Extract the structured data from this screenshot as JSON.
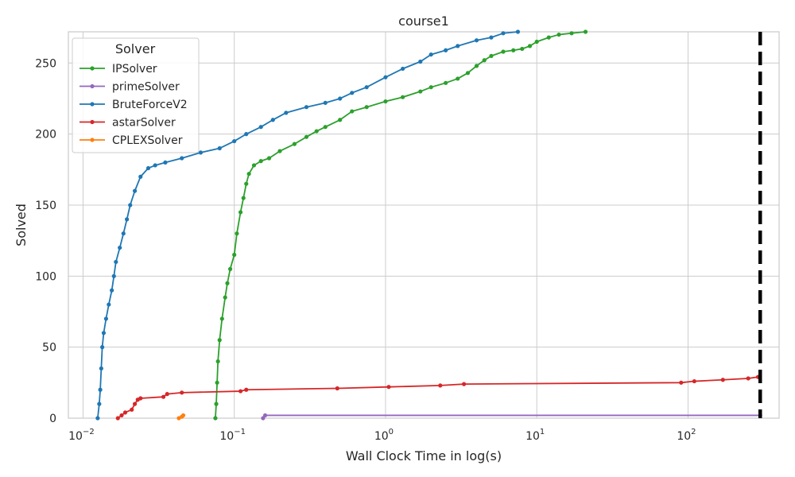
{
  "chart_data": {
    "type": "line",
    "title": "course1",
    "xlabel": "Wall Clock Time in log(s)",
    "ylabel": "Solved",
    "xscale": "log",
    "xlim": [
      0.008,
      400
    ],
    "ylim": [
      0,
      272
    ],
    "xticks": [
      {
        "value": 0.01,
        "base": "10",
        "exp": "−2"
      },
      {
        "value": 0.1,
        "base": "10",
        "exp": "−1"
      },
      {
        "value": 1,
        "base": "10",
        "exp": "0"
      },
      {
        "value": 10,
        "base": "10",
        "exp": "1"
      },
      {
        "value": 100,
        "base": "10",
        "exp": "2"
      }
    ],
    "yticks": [
      0,
      50,
      100,
      150,
      200,
      250
    ],
    "grid": true,
    "legend": {
      "title": "Solver",
      "position": "top-left"
    },
    "vline": {
      "x": 300,
      "style": "dashed",
      "color": "#000000"
    },
    "series": [
      {
        "name": "IPSolver",
        "color": "#2ca02c",
        "points": [
          [
            0.075,
            0
          ],
          [
            0.076,
            10
          ],
          [
            0.077,
            25
          ],
          [
            0.078,
            40
          ],
          [
            0.08,
            55
          ],
          [
            0.083,
            70
          ],
          [
            0.087,
            85
          ],
          [
            0.09,
            95
          ],
          [
            0.094,
            105
          ],
          [
            0.1,
            115
          ],
          [
            0.104,
            130
          ],
          [
            0.11,
            145
          ],
          [
            0.115,
            155
          ],
          [
            0.12,
            165
          ],
          [
            0.125,
            172
          ],
          [
            0.135,
            178
          ],
          [
            0.15,
            181
          ],
          [
            0.17,
            183
          ],
          [
            0.2,
            188
          ],
          [
            0.25,
            193
          ],
          [
            0.3,
            198
          ],
          [
            0.35,
            202
          ],
          [
            0.4,
            205
          ],
          [
            0.5,
            210
          ],
          [
            0.6,
            216
          ],
          [
            0.75,
            219
          ],
          [
            1.0,
            223
          ],
          [
            1.3,
            226
          ],
          [
            1.7,
            230
          ],
          [
            2.0,
            233
          ],
          [
            2.5,
            236
          ],
          [
            3.0,
            239
          ],
          [
            3.5,
            243
          ],
          [
            4.0,
            248
          ],
          [
            4.5,
            252
          ],
          [
            5.0,
            255
          ],
          [
            6.0,
            258
          ],
          [
            7.0,
            259
          ],
          [
            8.0,
            260
          ],
          [
            9.0,
            262
          ],
          [
            10.0,
            265
          ],
          [
            12.0,
            268
          ],
          [
            14.0,
            270
          ],
          [
            17.0,
            271
          ],
          [
            21.0,
            272
          ]
        ]
      },
      {
        "name": "primeSolver",
        "color": "#9467bd",
        "points": [
          [
            0.155,
            0
          ],
          [
            0.16,
            2
          ],
          [
            300,
            2
          ]
        ]
      },
      {
        "name": "BruteForceV2",
        "color": "#1f77b4",
        "points": [
          [
            0.0125,
            0
          ],
          [
            0.0128,
            10
          ],
          [
            0.013,
            20
          ],
          [
            0.0132,
            35
          ],
          [
            0.0134,
            50
          ],
          [
            0.0137,
            60
          ],
          [
            0.0142,
            70
          ],
          [
            0.0148,
            80
          ],
          [
            0.0155,
            90
          ],
          [
            0.016,
            100
          ],
          [
            0.0165,
            110
          ],
          [
            0.0175,
            120
          ],
          [
            0.0185,
            130
          ],
          [
            0.0195,
            140
          ],
          [
            0.0205,
            150
          ],
          [
            0.022,
            160
          ],
          [
            0.024,
            170
          ],
          [
            0.027,
            176
          ],
          [
            0.03,
            178
          ],
          [
            0.035,
            180
          ],
          [
            0.045,
            183
          ],
          [
            0.06,
            187
          ],
          [
            0.08,
            190
          ],
          [
            0.1,
            195
          ],
          [
            0.12,
            200
          ],
          [
            0.15,
            205
          ],
          [
            0.18,
            210
          ],
          [
            0.22,
            215
          ],
          [
            0.3,
            219
          ],
          [
            0.4,
            222
          ],
          [
            0.5,
            225
          ],
          [
            0.6,
            229
          ],
          [
            0.75,
            233
          ],
          [
            1.0,
            240
          ],
          [
            1.3,
            246
          ],
          [
            1.7,
            251
          ],
          [
            2.0,
            256
          ],
          [
            2.5,
            259
          ],
          [
            3.0,
            262
          ],
          [
            4.0,
            266
          ],
          [
            5.0,
            268
          ],
          [
            6.0,
            271
          ],
          [
            7.5,
            272
          ]
        ]
      },
      {
        "name": "astarSolver",
        "color": "#d62728",
        "points": [
          [
            0.017,
            0
          ],
          [
            0.018,
            2
          ],
          [
            0.019,
            4
          ],
          [
            0.021,
            6
          ],
          [
            0.022,
            10
          ],
          [
            0.023,
            13
          ],
          [
            0.024,
            14
          ],
          [
            0.034,
            15
          ],
          [
            0.036,
            17
          ],
          [
            0.045,
            18
          ],
          [
            0.11,
            19
          ],
          [
            0.12,
            20
          ],
          [
            0.48,
            21
          ],
          [
            1.05,
            22
          ],
          [
            2.3,
            23
          ],
          [
            3.3,
            24
          ],
          [
            90,
            25
          ],
          [
            110,
            26
          ],
          [
            170,
            27
          ],
          [
            250,
            28
          ],
          [
            290,
            29
          ]
        ]
      },
      {
        "name": "CPLEXSolver",
        "color": "#ff7f0e",
        "points": [
          [
            0.043,
            0
          ],
          [
            0.045,
            1
          ],
          [
            0.046,
            2
          ]
        ]
      }
    ]
  }
}
